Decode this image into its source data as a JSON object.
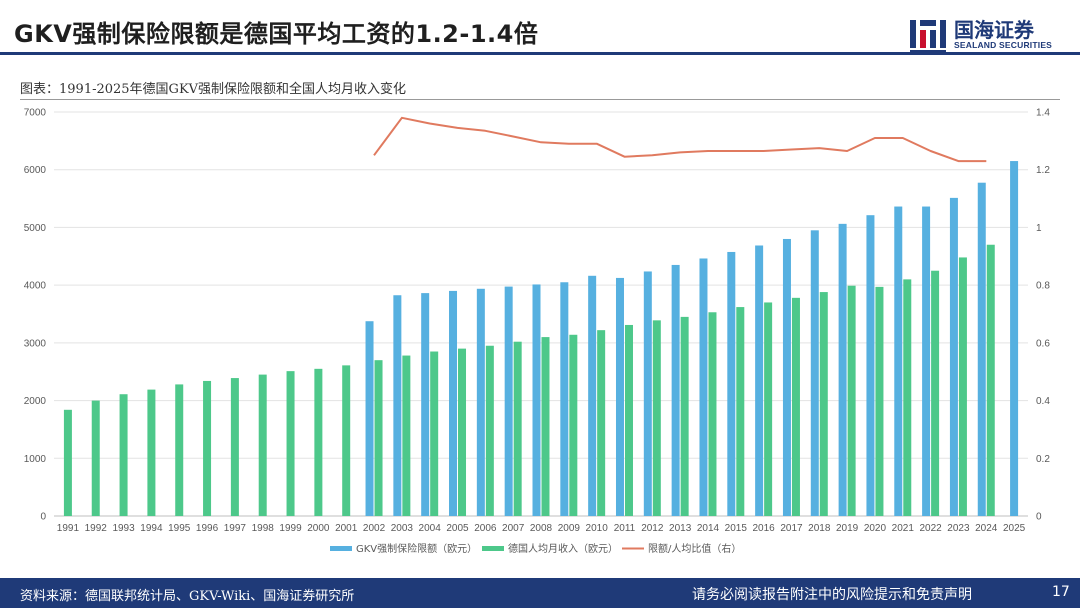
{
  "header": {
    "title": "GKV强制保险限额是德国平均工资的1.2-1.4倍",
    "logo_cn": "国海证券",
    "logo_en": "SEALAND SECURITIES"
  },
  "figure_caption": "图表：1991-2025年德国GKV强制保险限额和全国人均月收入变化",
  "footer": {
    "source": "资料来源：德国联邦统计局、GKV-Wiki、国海证券研究所",
    "disclaimer": "请务必阅读报告附注中的风险提示和免责声明",
    "page": "17"
  },
  "colors": {
    "limit": "#56B0E0",
    "income": "#4DC88A",
    "ratio": "#E07A5F",
    "brand": "#1f3a78"
  },
  "chart_data": {
    "type": "bar",
    "categories": [
      "1991",
      "1992",
      "1993",
      "1994",
      "1995",
      "1996",
      "1997",
      "1998",
      "1999",
      "2000",
      "2001",
      "2002",
      "2003",
      "2004",
      "2005",
      "2006",
      "2007",
      "2008",
      "2009",
      "2010",
      "2011",
      "2012",
      "2013",
      "2014",
      "2015",
      "2016",
      "2017",
      "2018",
      "2019",
      "2020",
      "2021",
      "2022",
      "2023",
      "2024",
      "2025"
    ],
    "series": [
      {
        "name": "GKV强制保险限额（欧元）",
        "kind": "bar",
        "axis": "left",
        "values": [
          null,
          null,
          null,
          null,
          null,
          null,
          null,
          null,
          null,
          null,
          null,
          3375,
          3825,
          3862,
          3900,
          3937,
          3975,
          4012,
          4050,
          4162,
          4125,
          4237,
          4350,
          4462,
          4575,
          4687,
          4800,
          4950,
          5062,
          5212,
          5362,
          5362,
          5512,
          5775,
          6150
        ]
      },
      {
        "name": "德国人均月收入（欧元）",
        "kind": "bar",
        "axis": "left",
        "values": [
          1840,
          2000,
          2110,
          2190,
          2280,
          2340,
          2390,
          2450,
          2510,
          2550,
          2610,
          2700,
          2780,
          2850,
          2900,
          2950,
          3020,
          3100,
          3140,
          3220,
          3310,
          3390,
          3450,
          3530,
          3620,
          3700,
          3780,
          3880,
          3990,
          3970,
          4100,
          4250,
          4480,
          4700,
          null
        ]
      },
      {
        "name": "限额/人均比值（右）",
        "kind": "line",
        "axis": "right",
        "values": [
          null,
          null,
          null,
          null,
          null,
          null,
          null,
          null,
          null,
          null,
          null,
          1.25,
          1.38,
          1.36,
          1.345,
          1.335,
          1.315,
          1.295,
          1.29,
          1.29,
          1.245,
          1.25,
          1.26,
          1.265,
          1.265,
          1.265,
          1.27,
          1.275,
          1.265,
          1.31,
          1.31,
          1.265,
          1.23,
          1.23,
          null
        ]
      }
    ],
    "left_axis": {
      "min": 0,
      "max": 7000,
      "ticks": [
        "0",
        "1000",
        "2000",
        "3000",
        "4000",
        "5000",
        "6000",
        "7000"
      ]
    },
    "right_axis": {
      "min": 0,
      "max": 1.4,
      "ticks": [
        "0",
        "0.2",
        "0.4",
        "0.6",
        "0.8",
        "1",
        "1.2",
        "1.4"
      ]
    },
    "grid": true,
    "legend": "bottom"
  }
}
